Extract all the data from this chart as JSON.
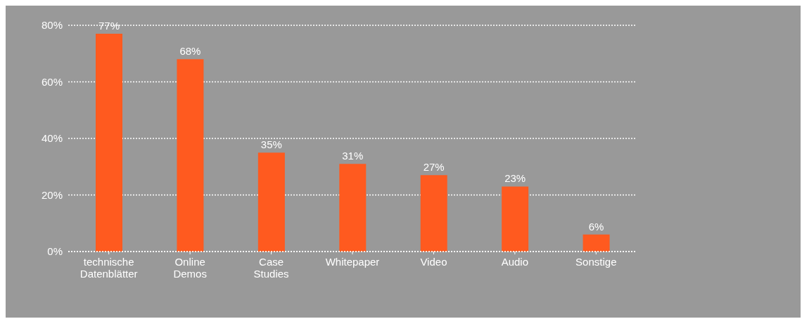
{
  "chart_data": {
    "type": "bar",
    "categories": [
      "technische Datenblätter",
      "Online Demos",
      "Case Studies",
      "Whitepaper",
      "Video",
      "Audio",
      "Sonstige"
    ],
    "values": [
      77,
      68,
      35,
      31,
      27,
      23,
      6
    ],
    "value_labels": [
      "77%",
      "68%",
      "35%",
      "31%",
      "27%",
      "23%",
      "6%"
    ],
    "color": "#ff5a1f",
    "ylim": [
      0,
      80
    ],
    "yticks": [
      {
        "value": 0,
        "label": "0%"
      },
      {
        "value": 20,
        "label": "20%"
      },
      {
        "value": 40,
        "label": "40%"
      },
      {
        "value": 60,
        "label": "60%"
      },
      {
        "value": 80,
        "label": "80%"
      }
    ],
    "grid": "y",
    "legend": false
  }
}
